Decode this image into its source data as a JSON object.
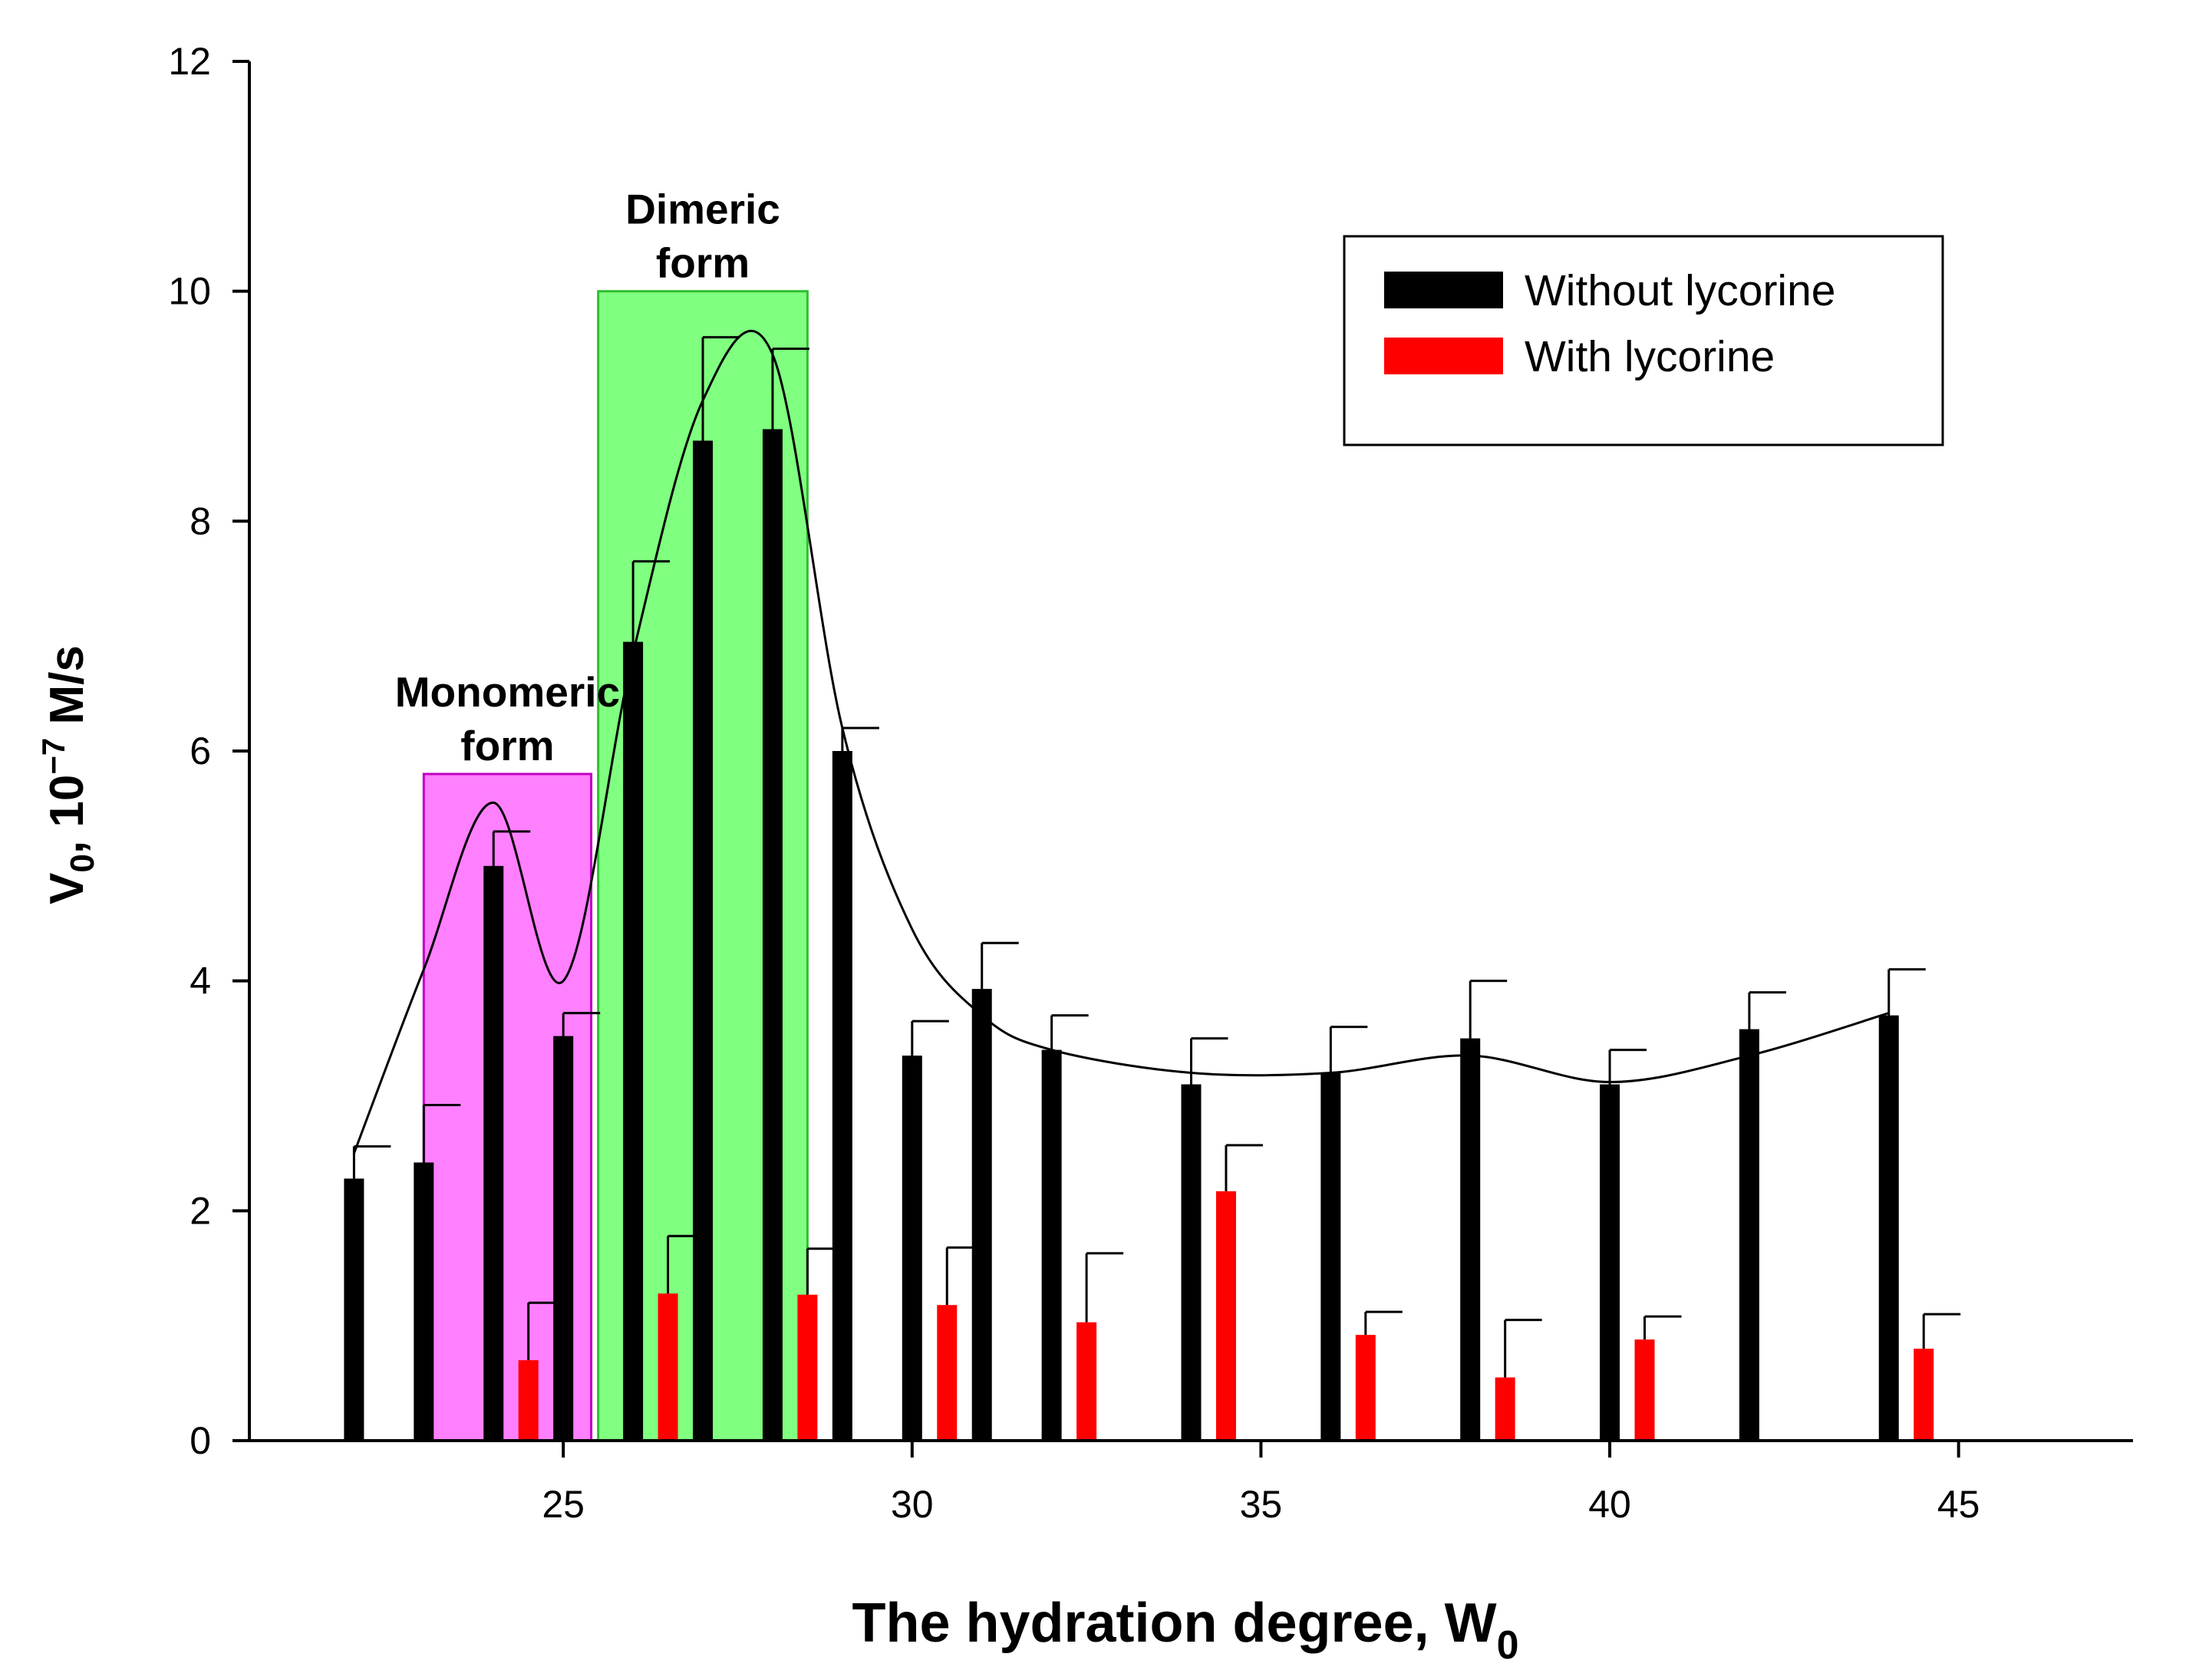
{
  "chart_data": {
    "type": "bar",
    "title": "",
    "xlabel": "The hydration degree, W",
    "xlabel_subscript": "0",
    "ylabel": "V",
    "ylabel_subscript": "0",
    "ylabel_unit": ", 10",
    "ylabel_exponent": "−7",
    "ylabel_unit_tail": " M/s",
    "xlim": [
      20.5,
      47.5
    ],
    "ylim": [
      0,
      12
    ],
    "xticks": [
      25,
      30,
      35,
      40,
      45
    ],
    "yticks": [
      0,
      2,
      4,
      6,
      8,
      10,
      12
    ],
    "grid": false,
    "legend_position": "top-right",
    "colors": {
      "without": "#000000",
      "with": "#ff0000",
      "monomeric_region": "#ff80ff",
      "dimeric_region": "#80ff80"
    },
    "series": [
      {
        "name": "Without lycorine",
        "color": "#000000",
        "x": [
          22,
          23,
          24,
          25,
          26,
          27,
          28,
          29,
          30,
          31,
          32,
          34,
          36,
          38,
          40,
          42,
          44
        ],
        "values": [
          2.28,
          2.42,
          5.0,
          3.52,
          6.95,
          8.7,
          8.8,
          6.0,
          3.35,
          3.93,
          3.4,
          3.1,
          3.2,
          3.5,
          3.1,
          3.58,
          3.7
        ],
        "errors": [
          0.28,
          0.5,
          0.3,
          0.2,
          0.7,
          0.9,
          0.7,
          0.2,
          0.3,
          0.4,
          0.3,
          0.4,
          0.4,
          0.5,
          0.3,
          0.32,
          0.4
        ]
      },
      {
        "name": "With lycorine",
        "color": "#ff0000",
        "x": [
          24.5,
          26.5,
          28.5,
          30.5,
          32.5,
          34.5,
          36.5,
          38.5,
          40.5,
          44.5
        ],
        "values": [
          0.7,
          1.28,
          1.27,
          1.18,
          1.03,
          2.17,
          0.92,
          0.55,
          0.88,
          0.8
        ],
        "errors": [
          0.5,
          0.5,
          0.4,
          0.5,
          0.6,
          0.4,
          0.2,
          0.5,
          0.2,
          0.3
        ]
      }
    ],
    "fit_curve": {
      "x": [
        22,
        23,
        24,
        25,
        26,
        27,
        28,
        29,
        30,
        31,
        32,
        34,
        36,
        38,
        40,
        42,
        44
      ],
      "values": [
        2.5,
        4.1,
        5.55,
        4.0,
        6.85,
        9.05,
        9.45,
        6.2,
        4.45,
        3.7,
        3.4,
        3.2,
        3.2,
        3.35,
        3.12,
        3.35,
        3.72
      ]
    },
    "regions": [
      {
        "label_line1": "Monomeric",
        "label_line2": "form",
        "x_start": 23.0,
        "x_end": 25.4,
        "y_top": 5.8,
        "color": "#ff80ff"
      },
      {
        "label_line1": "Dimeric",
        "label_line2": "form",
        "x_start": 25.5,
        "x_end": 28.5,
        "y_top": 10.0,
        "color": "#80ff80"
      }
    ],
    "legend": [
      "Without lycorine",
      "With lycorine"
    ]
  }
}
